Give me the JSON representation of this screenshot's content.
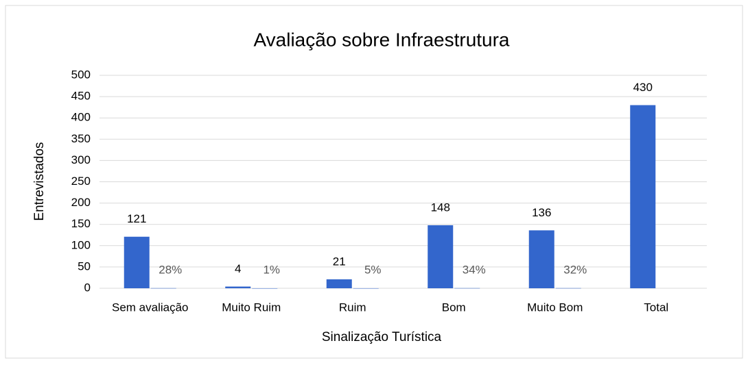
{
  "chart_data": {
    "type": "bar",
    "title": "Avaliação sobre Infraestrutura",
    "x_label": "Sinalização Turística",
    "y_label": "Entrevistados",
    "categories": [
      "Sem avaliação",
      "Muito Ruim",
      "Ruim",
      "Bom",
      "Muito Bom",
      "Total"
    ],
    "series": [
      {
        "color": "#3366cc",
        "values": [
          121,
          4,
          21,
          148,
          136,
          430
        ]
      },
      {
        "color": "#3366cc",
        "values": [
          0.28,
          0.01,
          0.05,
          0.34,
          0.32,
          null
        ],
        "value_labels": [
          "28%",
          "1%",
          "5%",
          "34%",
          "32%",
          null
        ]
      }
    ],
    "ylim": [
      0,
      500
    ],
    "yticks": [
      0,
      50,
      100,
      150,
      200,
      250,
      300,
      350,
      400,
      450,
      500
    ],
    "grid": true
  }
}
